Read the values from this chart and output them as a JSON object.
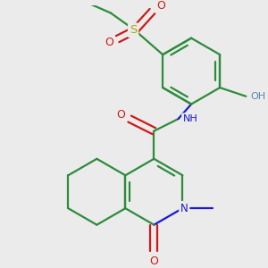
{
  "bg_color": "#ebebeb",
  "bond_color": "#2d8c3c",
  "nitrogen_color": "#1a1acc",
  "oxygen_color": "#cc1a1a",
  "sulfur_color": "#aaaa00",
  "hydrogen_color": "#5588aa",
  "line_width": 1.6,
  "figsize": [
    3.0,
    3.0
  ],
  "dpi": 100,
  "xlim": [
    0,
    300
  ],
  "ylim": [
    0,
    300
  ]
}
